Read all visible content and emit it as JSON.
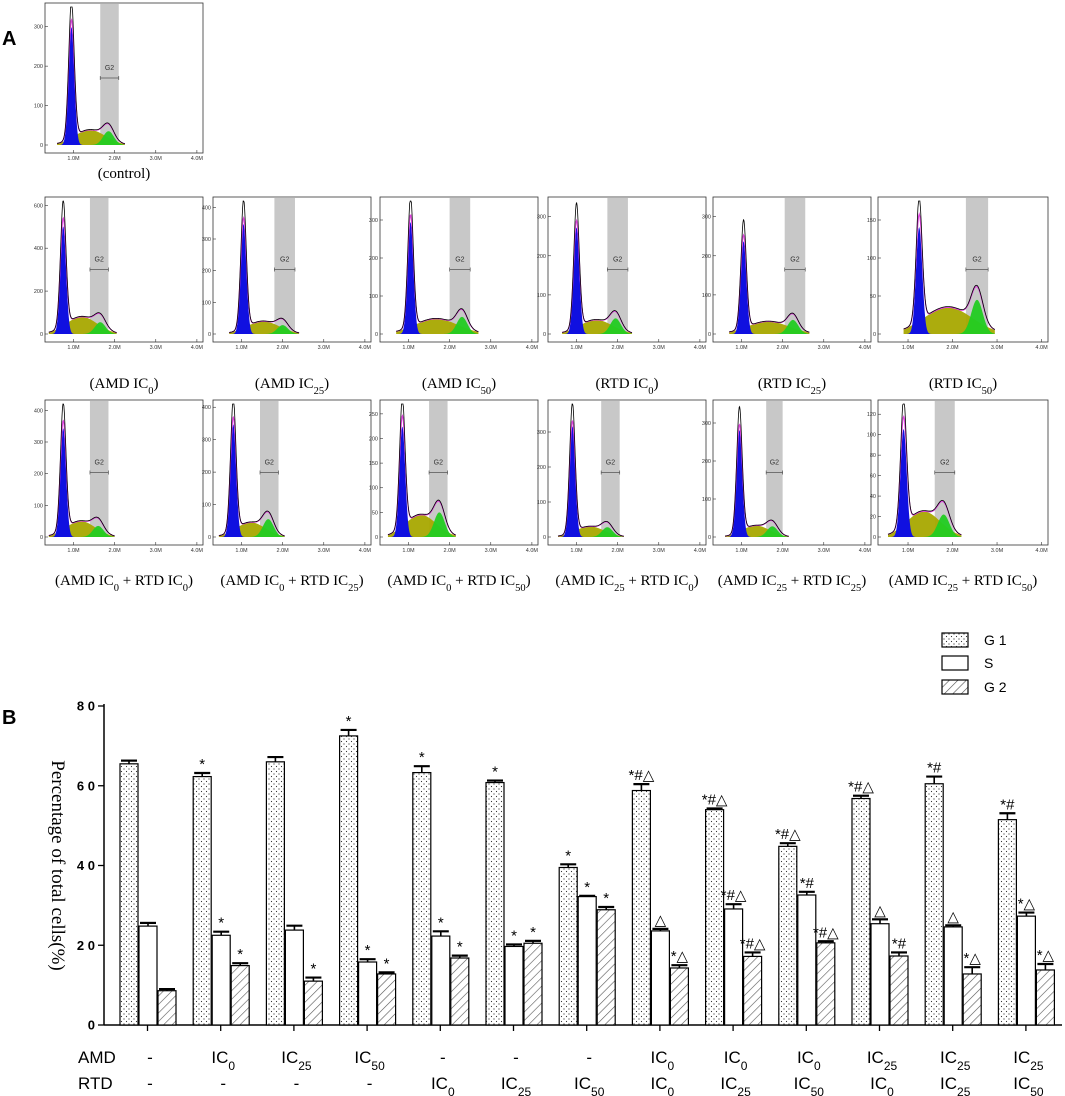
{
  "panel_a": {
    "letter": "A",
    "x_ticks": [
      "1.0M",
      "2.0M",
      "3.0M",
      "4.0M"
    ],
    "gate_label": "G2",
    "histograms": [
      {
        "label": "(control)",
        "y_ticks": [
          "0",
          "100",
          "200",
          "300"
        ],
        "ymax": 350,
        "g1_pos": 0.95,
        "g1_h": 340,
        "g2_pos": 1.85,
        "g2_h": 35,
        "s_h": 38,
        "gate": [
          1.65,
          2.1
        ]
      },
      {
        "label": "(AMD IC0)",
        "y_ticks": [
          "0",
          "200",
          "400",
          "600"
        ],
        "ymax": 620,
        "g1_pos": 0.75,
        "g1_h": 570,
        "g2_pos": 1.65,
        "g2_h": 55,
        "s_h": 80,
        "gate": [
          1.4,
          1.85
        ]
      },
      {
        "label": "(AMD IC25)",
        "y_ticks": [
          "0",
          "100",
          "200",
          "300",
          "400"
        ],
        "ymax": 420,
        "g1_pos": 1.05,
        "g1_h": 395,
        "g2_pos": 2.0,
        "g2_h": 28,
        "s_h": 40,
        "gate": [
          1.8,
          2.3
        ]
      },
      {
        "label": "(AMD IC50)",
        "y_ticks": [
          "0",
          "100",
          "200",
          "300"
        ],
        "ymax": 350,
        "g1_pos": 1.05,
        "g1_h": 335,
        "g2_pos": 2.3,
        "g2_h": 45,
        "s_h": 40,
        "gate": [
          2.0,
          2.5
        ]
      },
      {
        "label": "(RTD IC0)",
        "y_ticks": [
          "0",
          "100",
          "200",
          "300"
        ],
        "ymax": 340,
        "g1_pos": 1.0,
        "g1_h": 310,
        "g2_pos": 1.95,
        "g2_h": 40,
        "s_h": 36,
        "gate": [
          1.75,
          2.25
        ]
      },
      {
        "label": "(RTD IC25)",
        "y_ticks": [
          "0",
          "100",
          "200",
          "300"
        ],
        "ymax": 340,
        "g1_pos": 1.05,
        "g1_h": 270,
        "g2_pos": 2.25,
        "g2_h": 36,
        "s_h": 32,
        "gate": [
          2.05,
          2.55
        ]
      },
      {
        "label": "(RTD IC50)",
        "y_ticks": [
          "0",
          "50",
          "100",
          "150"
        ],
        "ymax": 175,
        "g1_pos": 1.25,
        "g1_h": 160,
        "g2_pos": 2.55,
        "g2_h": 45,
        "s_h": 35,
        "gate": [
          2.3,
          2.8
        ]
      },
      {
        "label": "(AMD IC0 + RTD IC0)",
        "y_ticks": [
          "0",
          "100",
          "200",
          "300",
          "400"
        ],
        "ymax": 420,
        "g1_pos": 0.75,
        "g1_h": 390,
        "g2_pos": 1.6,
        "g2_h": 35,
        "s_h": 50,
        "gate": [
          1.4,
          1.85
        ]
      },
      {
        "label": "(AMD IC0 + RTD IC25)",
        "y_ticks": [
          "0",
          "100",
          "200",
          "300",
          "400"
        ],
        "ymax": 410,
        "g1_pos": 0.8,
        "g1_h": 395,
        "g2_pos": 1.65,
        "g2_h": 55,
        "s_h": 45,
        "gate": [
          1.45,
          1.9
        ]
      },
      {
        "label": "(AMD IC0 + RTD IC50)",
        "y_ticks": [
          "0",
          "50",
          "100",
          "150",
          "200",
          "250"
        ],
        "ymax": 270,
        "g1_pos": 0.85,
        "g1_h": 255,
        "g2_pos": 1.75,
        "g2_h": 50,
        "s_h": 45,
        "gate": [
          1.5,
          1.95
        ]
      },
      {
        "label": "(AMD IC25 + RTD IC0)",
        "y_ticks": [
          "0",
          "100",
          "200",
          "300"
        ],
        "ymax": 380,
        "g1_pos": 0.9,
        "g1_h": 360,
        "g2_pos": 1.75,
        "g2_h": 28,
        "s_h": 30,
        "gate": [
          1.6,
          2.05
        ]
      },
      {
        "label": "(AMD IC25 + RTD IC25)",
        "y_ticks": [
          "0",
          "100",
          "200",
          "300"
        ],
        "ymax": 350,
        "g1_pos": 0.95,
        "g1_h": 320,
        "g2_pos": 1.75,
        "g2_h": 28,
        "s_h": 30,
        "gate": [
          1.6,
          2.0
        ]
      },
      {
        "label": "(AMD IC25 + RTD IC50)",
        "y_ticks": [
          "0",
          "20",
          "40",
          "60",
          "80",
          "100",
          "120"
        ],
        "ymax": 130,
        "g1_pos": 0.9,
        "g1_h": 120,
        "g2_pos": 1.8,
        "g2_h": 22,
        "s_h": 25,
        "gate": [
          1.6,
          2.05
        ]
      }
    ]
  },
  "chart_data": {
    "type": "bar",
    "panel_letter": "B",
    "ylabel": "Percentage of total cells(%)",
    "ylim": [
      0,
      80
    ],
    "y_ticks": [
      "0",
      "2 0",
      "4 0",
      "6 0",
      "8 0"
    ],
    "y_tick_values": [
      0,
      20,
      40,
      60,
      80
    ],
    "row_labels": [
      "AMD",
      "RTD"
    ],
    "categories": [
      {
        "amd": "-",
        "rtd": "-"
      },
      {
        "amd": "IC0",
        "rtd": "-"
      },
      {
        "amd": "IC25",
        "rtd": "-"
      },
      {
        "amd": "IC50",
        "rtd": "-"
      },
      {
        "amd": "-",
        "rtd": "IC0"
      },
      {
        "amd": "-",
        "rtd": "IC25"
      },
      {
        "amd": "-",
        "rtd": "IC50"
      },
      {
        "amd": "IC0",
        "rtd": "IC0"
      },
      {
        "amd": "IC0",
        "rtd": "IC25"
      },
      {
        "amd": "IC0",
        "rtd": "IC50"
      },
      {
        "amd": "IC25",
        "rtd": "IC0"
      },
      {
        "amd": "IC25",
        "rtd": "IC25"
      },
      {
        "amd": "IC25",
        "rtd": "IC50"
      }
    ],
    "series": [
      {
        "name": "G 1",
        "pattern": "dots",
        "values": [
          65.5,
          62.3,
          66.0,
          72.5,
          63.3,
          60.8,
          39.5,
          58.8,
          54.0,
          44.8,
          56.8,
          60.5,
          51.5
        ],
        "errors": [
          0.8,
          0.9,
          1.2,
          1.5,
          1.6,
          0.5,
          0.8,
          1.6,
          0.3,
          0.8,
          0.7,
          1.8,
          1.6
        ],
        "marks": [
          "",
          "*",
          "",
          "*",
          "*",
          "*",
          "*",
          "*#△",
          "*#△",
          "*#△",
          "*#△",
          "*#",
          "*#"
        ]
      },
      {
        "name": "S",
        "pattern": "solid",
        "values": [
          24.8,
          22.5,
          23.8,
          15.8,
          22.3,
          19.7,
          32.2,
          23.6,
          29.1,
          32.6,
          25.4,
          24.6,
          27.3
        ],
        "errors": [
          0.8,
          0.9,
          1.1,
          0.7,
          1.2,
          0.5,
          0.2,
          0.5,
          1.2,
          0.8,
          1.1,
          0.4,
          0.9
        ],
        "marks": [
          "",
          "*",
          "",
          "*",
          "*",
          "*",
          "*",
          "△",
          "*#△",
          "*#",
          "△",
          "△",
          "*△"
        ]
      },
      {
        "name": "G 2",
        "pattern": "hatch",
        "values": [
          8.6,
          14.9,
          11.0,
          12.8,
          16.8,
          20.5,
          28.9,
          14.3,
          17.2,
          20.6,
          17.3,
          12.8,
          13.8
        ],
        "errors": [
          0.4,
          0.6,
          0.9,
          0.4,
          0.6,
          0.6,
          0.7,
          0.7,
          1.0,
          0.4,
          0.9,
          1.7,
          1.5
        ],
        "marks": [
          "",
          "*",
          "*",
          "*",
          "*",
          "*",
          "*",
          "*△",
          "*#△",
          "*#△",
          "*#",
          "*△",
          "*△"
        ]
      }
    ],
    "legend_position": "top-right"
  }
}
